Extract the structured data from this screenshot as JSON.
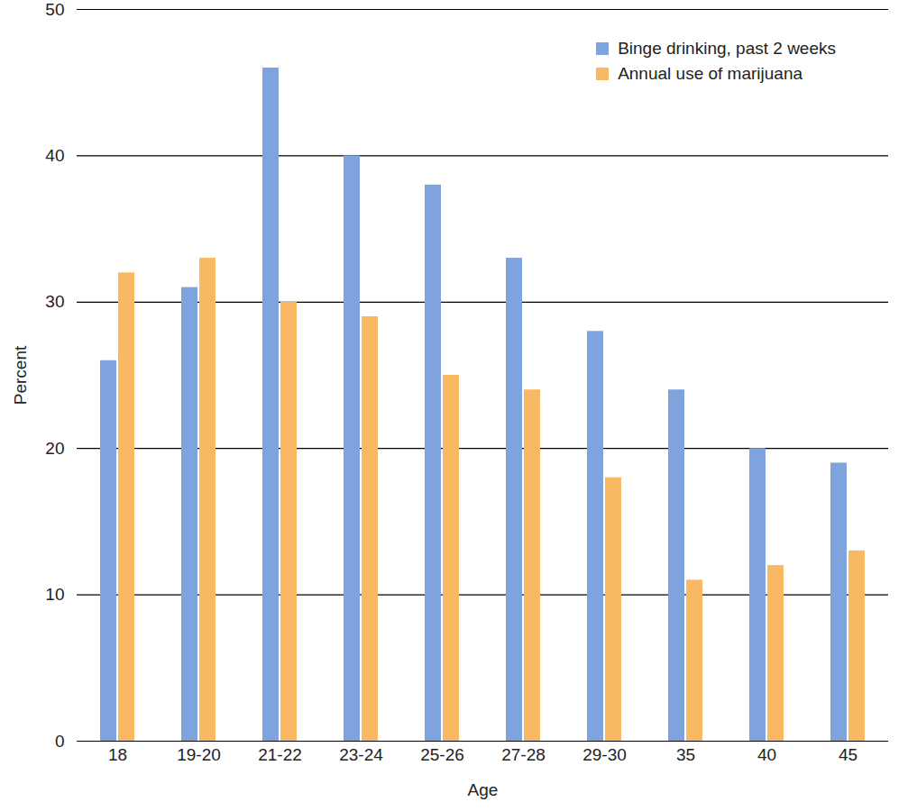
{
  "chart_data": {
    "type": "bar",
    "x_label": "Age",
    "y_label": "Percent",
    "categories": [
      "18",
      "19-20",
      "21-22",
      "23-24",
      "25-26",
      "27-28",
      "29-30",
      "35",
      "40",
      "45"
    ],
    "series": [
      {
        "name": "Binge drinking, past 2 weeks",
        "color": "#7fa3dc",
        "values": [
          26,
          31,
          46,
          40,
          38,
          33,
          28,
          24,
          20,
          19
        ]
      },
      {
        "name": "Annual use of marijuana",
        "color": "#f9b864",
        "values": [
          32,
          33,
          30,
          29,
          25,
          24,
          18,
          11,
          12,
          13
        ]
      }
    ],
    "ylim": [
      0,
      50
    ],
    "yticks": [
      0,
      10,
      20,
      30,
      40,
      50
    ],
    "grid": true,
    "legend": "top-right"
  }
}
